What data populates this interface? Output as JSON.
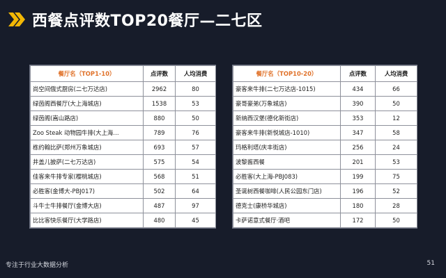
{
  "header": {
    "icon": "double-chevron-right-icon",
    "title": "西餐点评数TOP20餐厅—二七区",
    "accent_color": "#f2b705"
  },
  "table_left": {
    "columns": [
      "餐厅名（TOP1-10）",
      "点评数",
      "人均消费"
    ],
    "rows": [
      [
        "尚空间俄式厨房(二七万达店)",
        "2962",
        "80"
      ],
      [
        "绿茵阁西餐厅(大上海城店)",
        "1538",
        "53"
      ],
      [
        "绿茵阁(嵩山路店)",
        "880",
        "50"
      ],
      [
        "Zoo Steak 动物园牛排(大上海…",
        "789",
        "76"
      ],
      [
        "栋约翰比萨(郑州万象城店)",
        "693",
        "57"
      ],
      [
        "井盖儿披萨(二七万达店)",
        "575",
        "54"
      ],
      [
        "佳客来牛排专家(樱桃城店)",
        "568",
        "51"
      ],
      [
        "必胜客(金博大-PBJ017)",
        "502",
        "64"
      ],
      [
        "斗牛士牛排餐厅(金博大店)",
        "487",
        "97"
      ],
      [
        "比比客快乐餐厅(大学路店)",
        "480",
        "45"
      ]
    ]
  },
  "table_right": {
    "columns": [
      "餐厅名（TOP10-20）",
      "点评数",
      "人均消费"
    ],
    "rows": [
      [
        "豪客来牛排(二七万达店-1015)",
        "434",
        "66"
      ],
      [
        "豪哥豪弟(万象城店)",
        "390",
        "50"
      ],
      [
        "新纳西汉堡(德化新街店)",
        "353",
        "12"
      ],
      [
        "豪客来牛排(新悦城店-1010)",
        "347",
        "58"
      ],
      [
        "玛格利塔(庆丰街店)",
        "256",
        "24"
      ],
      [
        "波黎酱西餐",
        "201",
        "53"
      ],
      [
        "必胜客(大上海-PBJ083)",
        "199",
        "75"
      ],
      [
        "圣诞树西餐咖啡(人民公园东门店)",
        "196",
        "52"
      ],
      [
        "德克士(康桥华城店)",
        "180",
        "28"
      ],
      [
        "卡萨诺意式餐厅·酒吧",
        "172",
        "50"
      ]
    ]
  },
  "footer": {
    "tagline": "专注于行业大数据分析",
    "page_number": "51"
  }
}
